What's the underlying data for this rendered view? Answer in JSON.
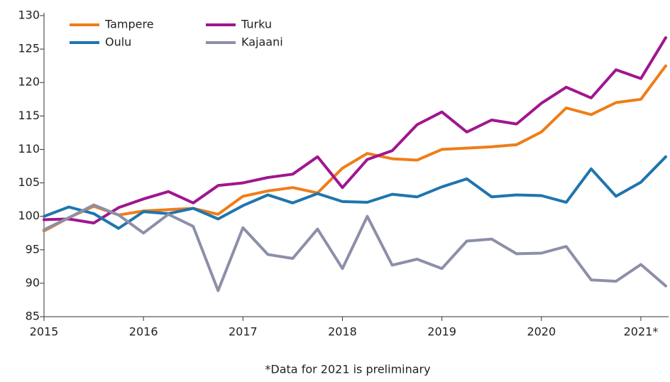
{
  "chart_data": {
    "type": "line",
    "note": "*Data for 2021 is preliminary",
    "categories": [
      "2015",
      null,
      null,
      null,
      "2016",
      null,
      null,
      null,
      "2017",
      null,
      null,
      null,
      "2018",
      null,
      null,
      null,
      "2019",
      null,
      null,
      null,
      "2020",
      null,
      null,
      null,
      "2021*",
      null
    ],
    "series": [
      {
        "name": "Tampere",
        "color": "#ef7d18",
        "values": [
          97.8,
          99.8,
          101.5,
          100.2,
          100.8,
          101.0,
          101.2,
          100.3,
          103.0,
          103.8,
          104.3,
          103.5,
          107.2,
          109.4,
          108.6,
          108.4,
          110.0,
          110.2,
          110.4,
          110.7,
          112.6,
          116.2,
          115.2,
          117.0,
          117.5,
          122.5
        ]
      },
      {
        "name": "Turku",
        "color": "#a0168f",
        "values": [
          99.5,
          99.6,
          99.0,
          101.3,
          102.6,
          103.7,
          102.0,
          104.6,
          105.0,
          105.8,
          106.3,
          108.9,
          104.3,
          108.5,
          109.8,
          113.7,
          115.6,
          112.6,
          114.4,
          113.8,
          116.9,
          119.3,
          117.7,
          121.9,
          120.6,
          126.7
        ]
      },
      {
        "name": "Oulu",
        "color": "#1f75ae",
        "values": [
          100.0,
          101.4,
          100.4,
          98.2,
          100.7,
          100.4,
          101.2,
          99.6,
          101.6,
          103.2,
          102.0,
          103.4,
          102.2,
          102.1,
          103.3,
          102.9,
          104.4,
          105.6,
          102.9,
          103.2,
          103.1,
          102.1,
          107.1,
          103.0,
          105.1,
          108.9
        ]
      },
      {
        "name": "Kajaani",
        "color": "#8c8fa8",
        "values": [
          98.0,
          99.8,
          101.7,
          100.2,
          97.5,
          100.3,
          98.5,
          88.9,
          98.3,
          94.3,
          93.7,
          98.1,
          92.2,
          100.0,
          92.7,
          93.6,
          92.2,
          96.3,
          96.6,
          94.4,
          94.5,
          95.5,
          90.5,
          90.3,
          92.8,
          89.6
        ]
      }
    ],
    "ylim": [
      85,
      130
    ],
    "yticks": [
      85,
      90,
      95,
      100,
      105,
      110,
      115,
      120,
      125,
      130
    ],
    "legend": "upper left",
    "grid": false
  }
}
